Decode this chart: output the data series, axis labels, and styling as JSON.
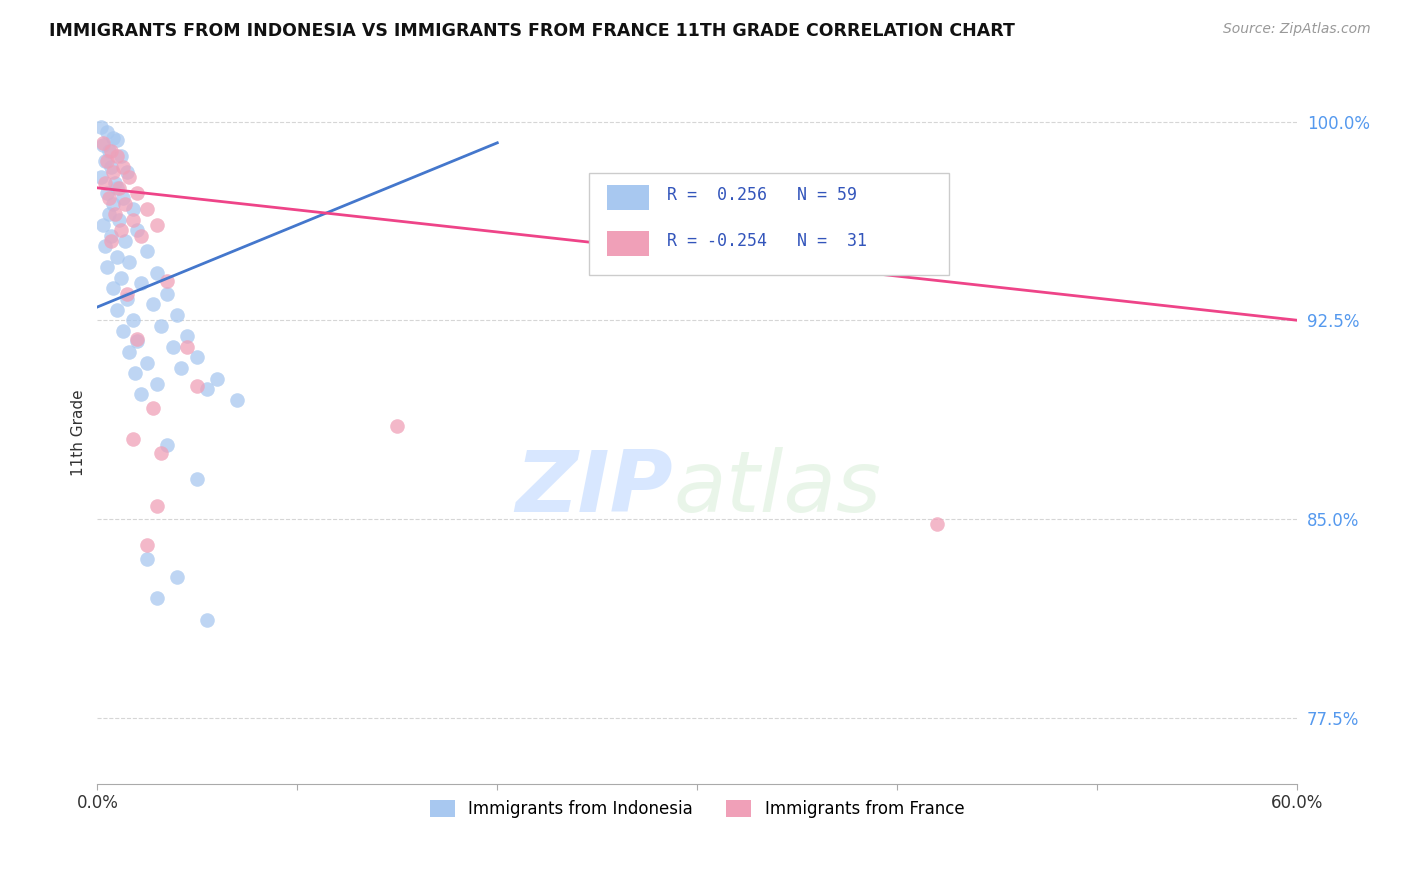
{
  "title": "IMMIGRANTS FROM INDONESIA VS IMMIGRANTS FROM FRANCE 11TH GRADE CORRELATION CHART",
  "source": "Source: ZipAtlas.com",
  "ylabel": "11th Grade",
  "xlim": [
    0.0,
    60.0
  ],
  "ylim": [
    75.0,
    101.5
  ],
  "xticks": [
    0.0,
    10.0,
    20.0,
    30.0,
    40.0,
    50.0,
    60.0
  ],
  "xtick_labels": [
    "0.0%",
    "",
    "",
    "",
    "",
    "",
    "60.0%"
  ],
  "ytick_labels": [
    "77.5%",
    "85.0%",
    "92.5%",
    "100.0%"
  ],
  "ytick_values": [
    77.5,
    85.0,
    92.5,
    100.0
  ],
  "blue_color": "#A8C8F0",
  "pink_color": "#F0A0B8",
  "blue_line_color": "#4477CC",
  "pink_line_color": "#EE4488",
  "R_blue": 0.256,
  "N_blue": 59,
  "R_pink": -0.254,
  "N_pink": 31,
  "legend_label_blue": "Immigrants from Indonesia",
  "legend_label_pink": "Immigrants from France",
  "watermark_zip": "ZIP",
  "watermark_atlas": "atlas",
  "blue_scatter": [
    [
      0.2,
      99.8
    ],
    [
      0.5,
      99.6
    ],
    [
      0.8,
      99.4
    ],
    [
      1.0,
      99.3
    ],
    [
      0.3,
      99.1
    ],
    [
      0.6,
      98.9
    ],
    [
      1.2,
      98.7
    ],
    [
      0.4,
      98.5
    ],
    [
      0.7,
      98.3
    ],
    [
      1.5,
      98.1
    ],
    [
      0.2,
      97.9
    ],
    [
      0.9,
      97.7
    ],
    [
      1.0,
      97.5
    ],
    [
      0.5,
      97.3
    ],
    [
      1.3,
      97.1
    ],
    [
      0.8,
      96.9
    ],
    [
      1.8,
      96.7
    ],
    [
      0.6,
      96.5
    ],
    [
      1.1,
      96.3
    ],
    [
      0.3,
      96.1
    ],
    [
      2.0,
      95.9
    ],
    [
      0.7,
      95.7
    ],
    [
      1.4,
      95.5
    ],
    [
      0.4,
      95.3
    ],
    [
      2.5,
      95.1
    ],
    [
      1.0,
      94.9
    ],
    [
      1.6,
      94.7
    ],
    [
      0.5,
      94.5
    ],
    [
      3.0,
      94.3
    ],
    [
      1.2,
      94.1
    ],
    [
      2.2,
      93.9
    ],
    [
      0.8,
      93.7
    ],
    [
      3.5,
      93.5
    ],
    [
      1.5,
      93.3
    ],
    [
      2.8,
      93.1
    ],
    [
      1.0,
      92.9
    ],
    [
      4.0,
      92.7
    ],
    [
      1.8,
      92.5
    ],
    [
      3.2,
      92.3
    ],
    [
      1.3,
      92.1
    ],
    [
      4.5,
      91.9
    ],
    [
      2.0,
      91.7
    ],
    [
      3.8,
      91.5
    ],
    [
      1.6,
      91.3
    ],
    [
      5.0,
      91.1
    ],
    [
      2.5,
      90.9
    ],
    [
      4.2,
      90.7
    ],
    [
      1.9,
      90.5
    ],
    [
      6.0,
      90.3
    ],
    [
      3.0,
      90.1
    ],
    [
      5.5,
      89.9
    ],
    [
      2.2,
      89.7
    ],
    [
      7.0,
      89.5
    ],
    [
      3.5,
      87.8
    ],
    [
      5.0,
      86.5
    ],
    [
      2.5,
      83.5
    ],
    [
      4.0,
      82.8
    ],
    [
      3.0,
      82.0
    ],
    [
      5.5,
      81.2
    ]
  ],
  "pink_scatter": [
    [
      0.3,
      99.2
    ],
    [
      0.7,
      98.9
    ],
    [
      1.0,
      98.7
    ],
    [
      0.5,
      98.5
    ],
    [
      1.3,
      98.3
    ],
    [
      0.8,
      98.1
    ],
    [
      1.6,
      97.9
    ],
    [
      0.4,
      97.7
    ],
    [
      1.1,
      97.5
    ],
    [
      2.0,
      97.3
    ],
    [
      0.6,
      97.1
    ],
    [
      1.4,
      96.9
    ],
    [
      2.5,
      96.7
    ],
    [
      0.9,
      96.5
    ],
    [
      1.8,
      96.3
    ],
    [
      3.0,
      96.1
    ],
    [
      1.2,
      95.9
    ],
    [
      2.2,
      95.7
    ],
    [
      0.7,
      95.5
    ],
    [
      3.5,
      94.0
    ],
    [
      1.5,
      93.5
    ],
    [
      2.0,
      91.8
    ],
    [
      4.5,
      91.5
    ],
    [
      2.8,
      89.2
    ],
    [
      15.0,
      88.5
    ],
    [
      3.0,
      85.5
    ],
    [
      42.0,
      84.8
    ],
    [
      2.5,
      84.0
    ],
    [
      1.8,
      88.0
    ],
    [
      3.2,
      87.5
    ],
    [
      5.0,
      90.0
    ]
  ]
}
